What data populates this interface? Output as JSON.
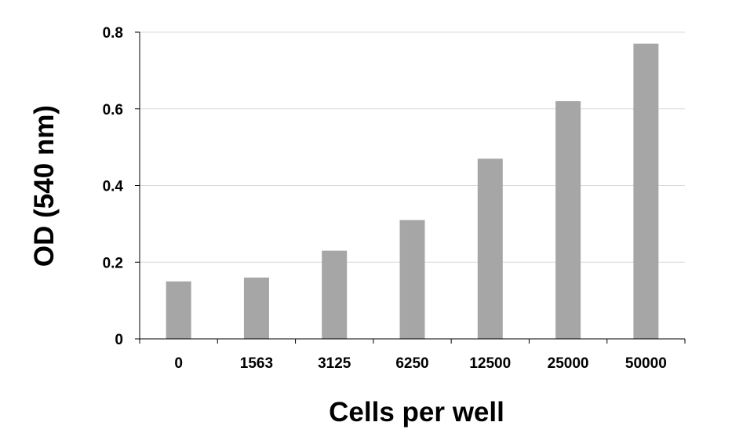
{
  "chart_data": {
    "type": "bar",
    "title": "",
    "xlabel": "Cells per well",
    "ylabel": "OD (540 nm)",
    "categories": [
      "0",
      "1563",
      "3125",
      "6250",
      "12500",
      "25000",
      "50000"
    ],
    "values": [
      0.15,
      0.16,
      0.23,
      0.31,
      0.47,
      0.62,
      0.77
    ],
    "ylim": [
      0,
      0.8
    ],
    "yticks": [
      0,
      0.2,
      0.4,
      0.6,
      0.8
    ],
    "ytick_labels": [
      "0",
      "0.2",
      "0.4",
      "0.6",
      "0.8"
    ],
    "grid": true,
    "legend": "none",
    "colors": {
      "bar": "#a6a6a6",
      "grid": "#d9d9d9",
      "axis": "#000000"
    }
  }
}
